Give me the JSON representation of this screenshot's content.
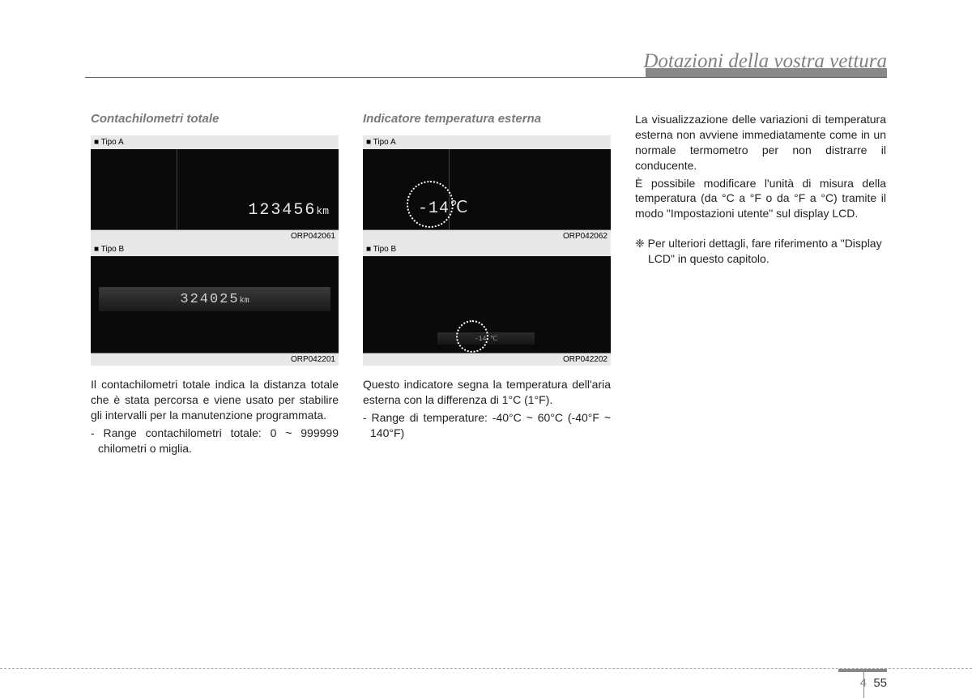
{
  "header": {
    "title": "Dotazioni della vostra vettura"
  },
  "col1": {
    "title": "Contachilometri totale",
    "typeA_label": "■ Tipo A",
    "typeA_value": "123456",
    "typeA_unit": "km",
    "typeA_code": "ORP042061",
    "typeB_label": "■ Tipo B",
    "typeB_value": "324025",
    "typeB_unit": "km",
    "typeB_code": "ORP042201",
    "para1": "Il contachilometri totale indica la distanza totale che è stata percorsa e viene usato per stabilire gli intervalli per la manutenzione programmata.",
    "bullet1": "- Range contachilometri totale: 0 ~ 999999 chilometri o miglia."
  },
  "col2": {
    "title": "Indicatore temperatura esterna",
    "typeA_label": "■ Tipo A",
    "typeA_value": "-14℃",
    "typeA_code": "ORP042062",
    "typeB_label": "■ Tipo B",
    "typeB_value": "-14 ℃",
    "typeB_code": "ORP042202",
    "para1": "Questo indicatore segna la temperatura dell'aria esterna con la differenza di 1°C (1°F).",
    "bullet1": "- Range di temperature: -40°C ~ 60°C (-40°F ~ 140°F)"
  },
  "col3": {
    "para1": "La visualizzazione delle variazioni di temperatura esterna non avviene immediatamente come in un normale termometro per non distrarre il conducente.",
    "para2": "È possibile modificare l'unità di misura della temperatura (da °C a °F o da °F a °C) tramite il modo \"Impostazioni utente\" sul display LCD.",
    "note": "❈ Per ulteriori dettagli, fare riferimento a \"Display LCD\" in questo capitolo."
  },
  "page": {
    "chapter": "4",
    "number": "55"
  }
}
